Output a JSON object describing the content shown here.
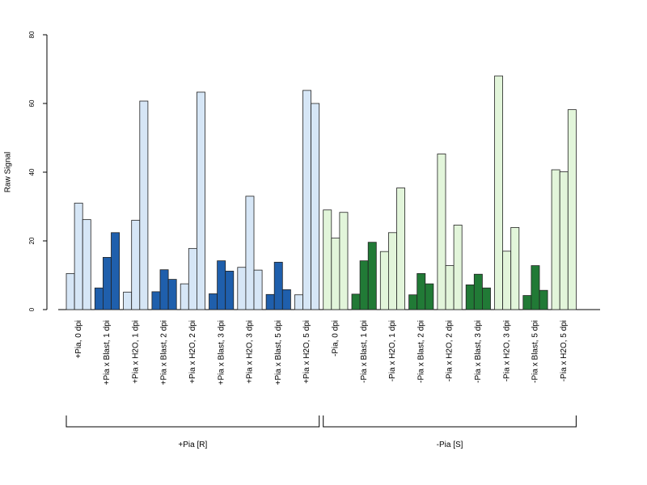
{
  "chart_data": {
    "type": "bar",
    "ylabel": "Raw Signal",
    "ylim": [
      0,
      80
    ],
    "yticks": [
      0,
      20,
      40,
      60,
      80
    ],
    "colors": {
      "light_blue": "#d6e6f6",
      "dark_blue": "#1f5fac",
      "light_green": "#e2f5da",
      "dark_green": "#217a36"
    },
    "categories": [
      {
        "label": "+Pia, 0 dpi",
        "values": [
          10.5,
          31,
          26.2
        ],
        "color": "light_blue"
      },
      {
        "label": "+Pia x Blast, 1 dpi",
        "values": [
          6.3,
          15.2,
          22.4
        ],
        "color": "dark_blue"
      },
      {
        "label": "+Pia x H2O, 1 dpi",
        "values": [
          5.1,
          26,
          60.7
        ],
        "color": "light_blue"
      },
      {
        "label": "+Pia x Blast, 2 dpi",
        "values": [
          5.2,
          11.6,
          8.8
        ],
        "color": "dark_blue"
      },
      {
        "label": "+Pia x H2O, 2 dpi",
        "values": [
          7.5,
          17.8,
          63.3
        ],
        "color": "light_blue"
      },
      {
        "label": "+Pia x Blast, 3 dpi",
        "values": [
          4.6,
          14.2,
          11.2
        ],
        "color": "dark_blue"
      },
      {
        "label": "+Pia x H2O, 3 dpi",
        "values": [
          12.3,
          33,
          11.5
        ],
        "color": "light_blue"
      },
      {
        "label": "+Pia x Blast, 5 dpi",
        "values": [
          4.4,
          13.8,
          5.8
        ],
        "color": "dark_blue"
      },
      {
        "label": "+Pia x H2O, 5 dpi",
        "values": [
          4.3,
          63.8,
          60
        ],
        "color": "light_blue"
      },
      {
        "label": "-Pia, 0 dpi",
        "values": [
          29,
          20.8,
          28.3
        ],
        "color": "light_green"
      },
      {
        "label": "-Pia x Blast, 1 dpi",
        "values": [
          4.5,
          14.2,
          19.6
        ],
        "color": "dark_green"
      },
      {
        "label": "-Pia x H2O, 1 dpi",
        "values": [
          16.9,
          22.4,
          35.4
        ],
        "color": "light_green"
      },
      {
        "label": "-Pia x Blast, 2 dpi",
        "values": [
          4.3,
          10.5,
          7.5
        ],
        "color": "dark_green"
      },
      {
        "label": "-Pia x H2O, 2 dpi",
        "values": [
          45.3,
          12.8,
          24.6
        ],
        "color": "light_green"
      },
      {
        "label": "-Pia x Blast, 3 dpi",
        "values": [
          7.2,
          10.3,
          6.3
        ],
        "color": "dark_green"
      },
      {
        "label": "-Pia x H2O, 3 dpi",
        "values": [
          68,
          17,
          23.9
        ],
        "color": "light_green"
      },
      {
        "label": "-Pia x Blast, 5 dpi",
        "values": [
          4.1,
          12.8,
          5.6
        ],
        "color": "dark_green"
      },
      {
        "label": "-Pia x H2O, 5 dpi",
        "values": [
          40.7,
          40.1,
          58.2
        ],
        "color": "light_green"
      }
    ],
    "groups": [
      {
        "label": "+Pia [R]",
        "first": 0,
        "last": 8
      },
      {
        "label": "-Pia [S]",
        "first": 9,
        "last": 17
      }
    ]
  }
}
